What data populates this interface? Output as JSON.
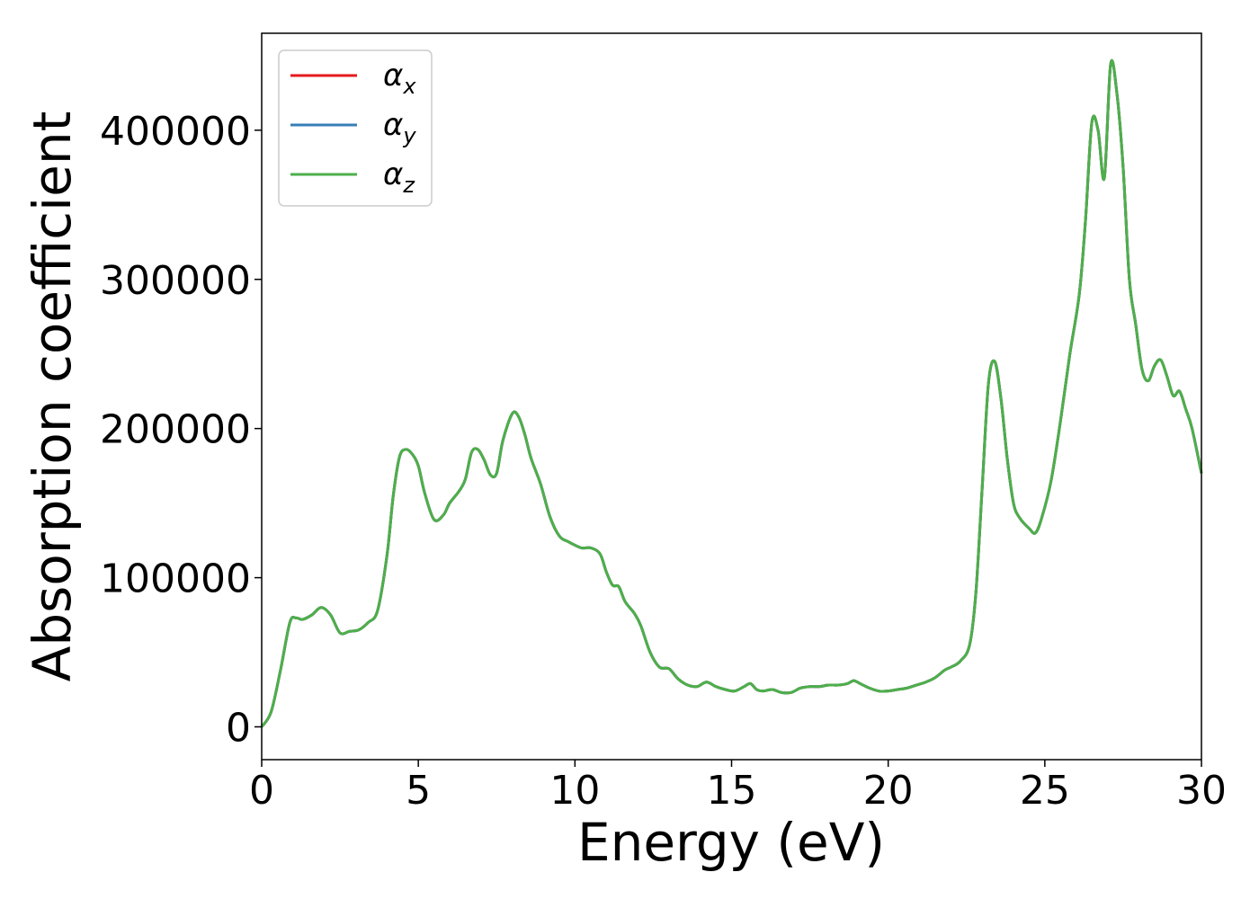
{
  "chart_data": {
    "type": "line",
    "title": "",
    "xlabel": "Energy (eV)",
    "ylabel": "Absorption coefficient",
    "xlim": [
      0,
      30
    ],
    "ylim": [
      -22000,
      465000
    ],
    "xticks": [
      0,
      5,
      10,
      15,
      20,
      25,
      30
    ],
    "yticks": [
      0,
      100000,
      200000,
      300000,
      400000
    ],
    "grid": false,
    "legend_position": "top-left",
    "series": [
      {
        "name": "α_x",
        "label_main": "α",
        "label_sub": "x",
        "color": "#e41a1c",
        "x": [
          0,
          0.3,
          0.6,
          0.9,
          1.1,
          1.3,
          1.6,
          1.9,
          2.2,
          2.5,
          2.8,
          3.1,
          3.4,
          3.7,
          4.0,
          4.2,
          4.4,
          4.6,
          4.8,
          5.0,
          5.2,
          5.5,
          5.8,
          6.0,
          6.3,
          6.5,
          6.7,
          6.9,
          7.1,
          7.3,
          7.5,
          7.7,
          8.0,
          8.2,
          8.4,
          8.6,
          8.9,
          9.2,
          9.5,
          9.8,
          10.2,
          10.5,
          10.8,
          11.0,
          11.2,
          11.4,
          11.6,
          11.9,
          12.1,
          12.4,
          12.7,
          13.0,
          13.3,
          13.6,
          13.9,
          14.2,
          14.5,
          14.8,
          15.1,
          15.4,
          15.6,
          15.8,
          16.0,
          16.3,
          16.6,
          16.9,
          17.2,
          17.5,
          17.8,
          18.1,
          18.4,
          18.7,
          18.9,
          19.1,
          19.4,
          19.7,
          20.0,
          20.3,
          20.6,
          20.9,
          21.2,
          21.5,
          21.8,
          22.0,
          22.3,
          22.6,
          22.8,
          23.0,
          23.2,
          23.4,
          23.6,
          23.8,
          24.0,
          24.2,
          24.5,
          24.7,
          24.9,
          25.2,
          25.5,
          25.8,
          26.1,
          26.3,
          26.5,
          26.7,
          26.9,
          27.1,
          27.3,
          27.5,
          27.7,
          27.9,
          28.1,
          28.3,
          28.5,
          28.7,
          28.9,
          29.1,
          29.3,
          29.5,
          29.7,
          30.0
        ],
        "y": [
          0,
          10000,
          38000,
          70000,
          73000,
          72000,
          75000,
          80000,
          75000,
          63000,
          64000,
          65000,
          70000,
          78000,
          115000,
          155000,
          181000,
          186000,
          183000,
          175000,
          157000,
          139000,
          142000,
          150000,
          158000,
          166000,
          184000,
          186000,
          179000,
          169000,
          170000,
          192000,
          210000,
          208000,
          196000,
          180000,
          163000,
          141000,
          128000,
          124000,
          120000,
          120000,
          116000,
          104000,
          95000,
          94000,
          84000,
          76000,
          68000,
          50000,
          40000,
          39000,
          32000,
          28000,
          27000,
          30000,
          27000,
          25000,
          24000,
          27000,
          29000,
          25000,
          24000,
          25000,
          23000,
          23000,
          26000,
          27000,
          27000,
          28000,
          28000,
          29000,
          31000,
          29000,
          26000,
          24000,
          24000,
          25000,
          26000,
          28000,
          30000,
          33000,
          38000,
          40000,
          44000,
          55000,
          90000,
          160000,
          230000,
          245000,
          220000,
          180000,
          150000,
          140000,
          133000,
          130000,
          140000,
          165000,
          205000,
          250000,
          290000,
          340000,
          405000,
          400000,
          368000,
          444000,
          425000,
          375000,
          300000,
          270000,
          240000,
          232000,
          242000,
          246000,
          235000,
          222000,
          225000,
          213000,
          200000,
          170000
        ]
      },
      {
        "name": "α_y",
        "label_main": "α",
        "label_sub": "y",
        "color": "#377eb8",
        "x": [
          0,
          0.3,
          0.6,
          0.9,
          1.1,
          1.3,
          1.6,
          1.9,
          2.2,
          2.5,
          2.8,
          3.1,
          3.4,
          3.7,
          4.0,
          4.2,
          4.4,
          4.6,
          4.8,
          5.0,
          5.2,
          5.5,
          5.8,
          6.0,
          6.3,
          6.5,
          6.7,
          6.9,
          7.1,
          7.3,
          7.5,
          7.7,
          8.0,
          8.2,
          8.4,
          8.6,
          8.9,
          9.2,
          9.5,
          9.8,
          10.2,
          10.5,
          10.8,
          11.0,
          11.2,
          11.4,
          11.6,
          11.9,
          12.1,
          12.4,
          12.7,
          13.0,
          13.3,
          13.6,
          13.9,
          14.2,
          14.5,
          14.8,
          15.1,
          15.4,
          15.6,
          15.8,
          16.0,
          16.3,
          16.6,
          16.9,
          17.2,
          17.5,
          17.8,
          18.1,
          18.4,
          18.7,
          18.9,
          19.1,
          19.4,
          19.7,
          20.0,
          20.3,
          20.6,
          20.9,
          21.2,
          21.5,
          21.8,
          22.0,
          22.3,
          22.6,
          22.8,
          23.0,
          23.2,
          23.4,
          23.6,
          23.8,
          24.0,
          24.2,
          24.5,
          24.7,
          24.9,
          25.2,
          25.5,
          25.8,
          26.1,
          26.3,
          26.5,
          26.7,
          26.9,
          27.1,
          27.3,
          27.5,
          27.7,
          27.9,
          28.1,
          28.3,
          28.5,
          28.7,
          28.9,
          29.1,
          29.3,
          29.5,
          29.7,
          30.0
        ],
        "y": [
          0,
          10000,
          38000,
          70000,
          73000,
          72000,
          75000,
          80000,
          75000,
          63000,
          64000,
          65000,
          70000,
          78000,
          115000,
          155000,
          181000,
          186000,
          183000,
          175000,
          157000,
          139000,
          142000,
          150000,
          158000,
          166000,
          184000,
          186000,
          179000,
          169000,
          170000,
          192000,
          210000,
          208000,
          196000,
          180000,
          163000,
          141000,
          128000,
          124000,
          120000,
          120000,
          116000,
          104000,
          95000,
          94000,
          84000,
          76000,
          68000,
          50000,
          40000,
          39000,
          32000,
          28000,
          27000,
          30000,
          27000,
          25000,
          24000,
          27000,
          29000,
          25000,
          24000,
          25000,
          23000,
          23000,
          26000,
          27000,
          27000,
          28000,
          28000,
          29000,
          31000,
          29000,
          26000,
          24000,
          24000,
          25000,
          26000,
          28000,
          30000,
          33000,
          38000,
          40000,
          44000,
          55000,
          90000,
          160000,
          230000,
          245000,
          220000,
          180000,
          150000,
          140000,
          133000,
          130000,
          140000,
          165000,
          205000,
          250000,
          290000,
          340000,
          405000,
          400000,
          368000,
          444000,
          425000,
          375000,
          300000,
          270000,
          240000,
          232000,
          242000,
          246000,
          235000,
          222000,
          225000,
          213000,
          200000,
          170000
        ]
      },
      {
        "name": "α_z",
        "label_main": "α",
        "label_sub": "z",
        "color": "#4daf4a",
        "x": [
          0,
          0.3,
          0.6,
          0.9,
          1.1,
          1.3,
          1.6,
          1.9,
          2.2,
          2.5,
          2.8,
          3.1,
          3.4,
          3.7,
          4.0,
          4.2,
          4.4,
          4.6,
          4.8,
          5.0,
          5.2,
          5.5,
          5.8,
          6.0,
          6.3,
          6.5,
          6.7,
          6.9,
          7.1,
          7.3,
          7.5,
          7.7,
          8.0,
          8.2,
          8.4,
          8.6,
          8.9,
          9.2,
          9.5,
          9.8,
          10.2,
          10.5,
          10.8,
          11.0,
          11.2,
          11.4,
          11.6,
          11.9,
          12.1,
          12.4,
          12.7,
          13.0,
          13.3,
          13.6,
          13.9,
          14.2,
          14.5,
          14.8,
          15.1,
          15.4,
          15.6,
          15.8,
          16.0,
          16.3,
          16.6,
          16.9,
          17.2,
          17.5,
          17.8,
          18.1,
          18.4,
          18.7,
          18.9,
          19.1,
          19.4,
          19.7,
          20.0,
          20.3,
          20.6,
          20.9,
          21.2,
          21.5,
          21.8,
          22.0,
          22.3,
          22.6,
          22.8,
          23.0,
          23.2,
          23.4,
          23.6,
          23.8,
          24.0,
          24.2,
          24.5,
          24.7,
          24.9,
          25.2,
          25.5,
          25.8,
          26.1,
          26.3,
          26.5,
          26.7,
          26.9,
          27.1,
          27.3,
          27.5,
          27.7,
          27.9,
          28.1,
          28.3,
          28.5,
          28.7,
          28.9,
          29.1,
          29.3,
          29.5,
          29.7,
          30.0
        ],
        "y": [
          0,
          10000,
          38000,
          70000,
          73000,
          72000,
          75000,
          80000,
          75000,
          63000,
          64000,
          65000,
          70000,
          78000,
          115000,
          155000,
          181000,
          186000,
          183000,
          175000,
          157000,
          139000,
          142000,
          150000,
          158000,
          166000,
          184000,
          186000,
          179000,
          169000,
          170000,
          192000,
          210000,
          208000,
          196000,
          180000,
          163000,
          141000,
          128000,
          124000,
          120000,
          120000,
          116000,
          104000,
          95000,
          94000,
          84000,
          76000,
          68000,
          50000,
          40000,
          39000,
          32000,
          28000,
          27000,
          30000,
          27000,
          25000,
          24000,
          27000,
          29000,
          25000,
          24000,
          25000,
          23000,
          23000,
          26000,
          27000,
          27000,
          28000,
          28000,
          29000,
          31000,
          29000,
          26000,
          24000,
          24000,
          25000,
          26000,
          28000,
          30000,
          33000,
          38000,
          40000,
          44000,
          55000,
          90000,
          160000,
          230000,
          245000,
          220000,
          180000,
          150000,
          140000,
          133000,
          130000,
          140000,
          165000,
          205000,
          250000,
          290000,
          340000,
          405000,
          400000,
          368000,
          444000,
          425000,
          375000,
          300000,
          270000,
          240000,
          232000,
          242000,
          246000,
          235000,
          222000,
          225000,
          213000,
          200000,
          170000
        ]
      }
    ]
  }
}
